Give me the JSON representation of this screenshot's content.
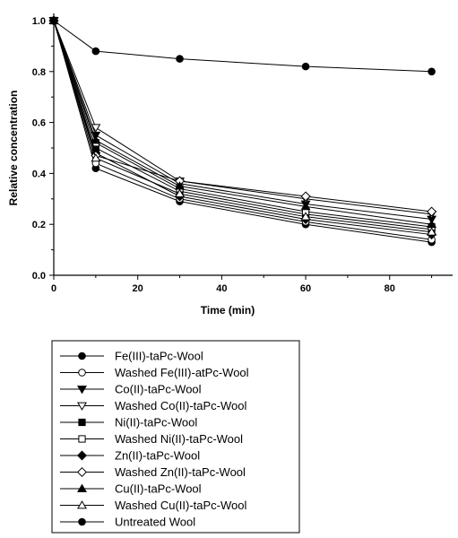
{
  "chart_data": {
    "type": "line",
    "xlabel": "Time (min)",
    "ylabel": "Relative concentration",
    "xlim": [
      0,
      95
    ],
    "ylim": [
      0.0,
      1.0
    ],
    "xticks": [
      "0",
      "20",
      "40",
      "60",
      "80"
    ],
    "yticks": [
      "0.0",
      "0.2",
      "0.4",
      "0.6",
      "0.8",
      "1.0"
    ],
    "grid": false,
    "legend_position": "bottom",
    "x": [
      0,
      10,
      30,
      60,
      90
    ],
    "series": [
      {
        "name": "Fe(III)-taPc-Wool",
        "marker": "circle",
        "fill": "filled",
        "values": [
          1.0,
          0.42,
          0.29,
          0.2,
          0.13
        ]
      },
      {
        "name": "Washed Fe(III)-atPc-Wool",
        "marker": "circle",
        "fill": "open",
        "values": [
          1.0,
          0.44,
          0.3,
          0.21,
          0.14
        ]
      },
      {
        "name": "Co(II)-taPc-Wool",
        "marker": "triangle-down",
        "fill": "filled",
        "values": [
          1.0,
          0.55,
          0.36,
          0.28,
          0.22
        ]
      },
      {
        "name": "Washed Co(II)-taPc-Wool",
        "marker": "triangle-down",
        "fill": "open",
        "values": [
          1.0,
          0.58,
          0.37,
          0.3,
          0.24
        ]
      },
      {
        "name": "Ni(II)-taPc-Wool",
        "marker": "square",
        "fill": "filled",
        "values": [
          1.0,
          0.5,
          0.33,
          0.24,
          0.18
        ]
      },
      {
        "name": "Washed Ni(II)-taPc-Wool",
        "marker": "square",
        "fill": "open",
        "values": [
          1.0,
          0.52,
          0.34,
          0.25,
          0.19
        ]
      },
      {
        "name": "Zn(II)-taPc-Wool",
        "marker": "diamond",
        "fill": "filled",
        "values": [
          1.0,
          0.48,
          0.31,
          0.22,
          0.16
        ]
      },
      {
        "name": "Washed Zn(II)-taPc-Wool",
        "marker": "diamond",
        "fill": "open",
        "values": [
          1.0,
          0.47,
          0.37,
          0.31,
          0.25
        ]
      },
      {
        "name": "Cu(II)-taPc-Wool",
        "marker": "triangle-up",
        "fill": "filled",
        "values": [
          1.0,
          0.53,
          0.35,
          0.27,
          0.2
        ]
      },
      {
        "name": "Washed Cu(II)-taPc-Wool",
        "marker": "triangle-up",
        "fill": "open",
        "values": [
          1.0,
          0.46,
          0.32,
          0.23,
          0.17
        ]
      },
      {
        "name": "Untreated Wool",
        "marker": "circle",
        "fill": "filled",
        "values": [
          1.0,
          0.88,
          0.85,
          0.82,
          0.8
        ]
      }
    ]
  }
}
